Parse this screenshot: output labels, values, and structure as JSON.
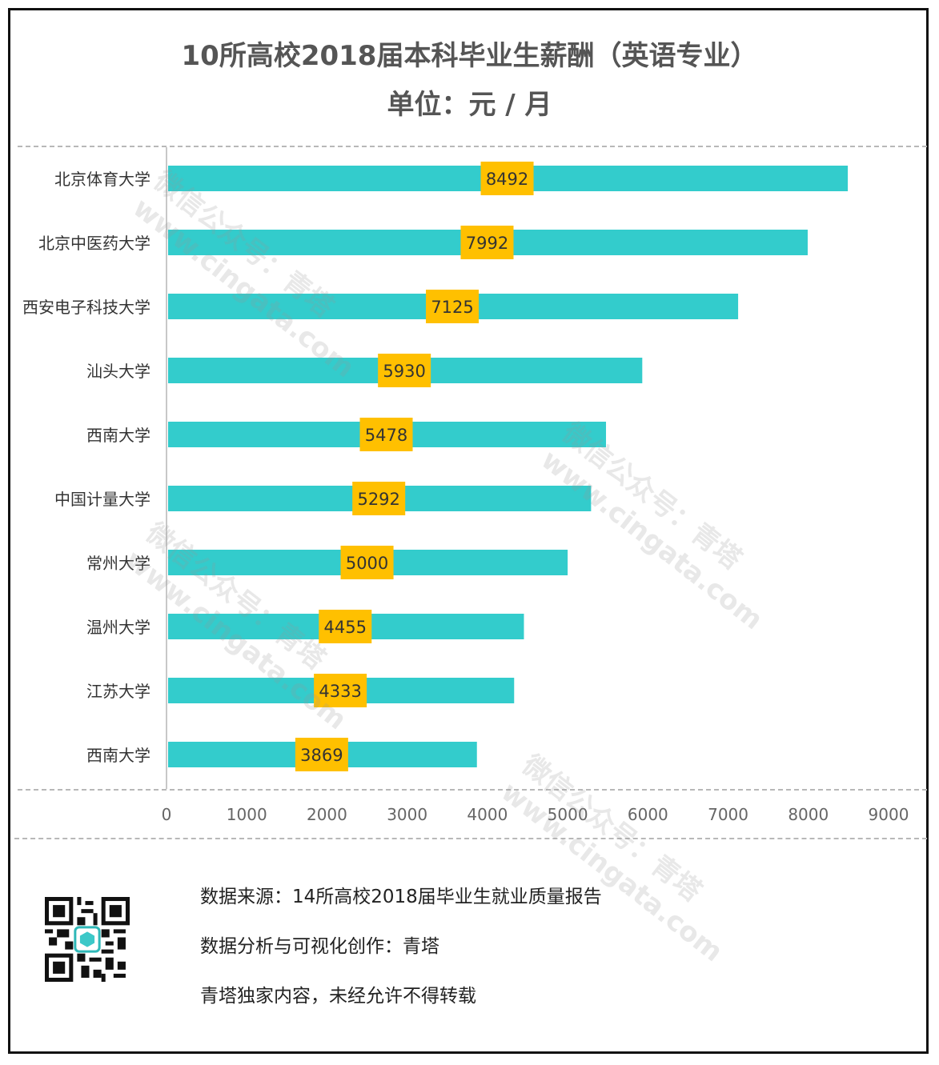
{
  "header": {
    "title": "10所高校2018届本科毕业生薪酬（英语专业）",
    "subtitle": "单位：元 / 月"
  },
  "chart_data": {
    "type": "bar",
    "orientation": "horizontal",
    "title": "10所高校2018届本科毕业生薪酬（英语专业）",
    "subtitle": "单位：元 / 月",
    "categories": [
      "北京体育大学",
      "北京中医药大学",
      "西安电子科技大学",
      "汕头大学",
      "西南大学",
      "中国计量大学",
      "常州大学",
      "温州大学",
      "江苏大学",
      "西南大学"
    ],
    "values": [
      8492,
      7992,
      7125,
      5930,
      5478,
      5292,
      5000,
      4455,
      4333,
      3869
    ],
    "xlim": [
      0,
      9000
    ],
    "xticks": [
      0,
      1000,
      2000,
      3000,
      4000,
      5000,
      6000,
      7000,
      8000,
      9000
    ],
    "bar_color": "#33CCCC",
    "label_bg_color": "#FFC000",
    "grid": false,
    "legend": "none"
  },
  "footer": {
    "source": "数据来源：14所高校2018届毕业生就业质量报告",
    "credit": "数据分析与可视化创作：青塔",
    "copyright": "青塔独家内容，未经允许不得转载"
  },
  "watermark": {
    "line1": "微信公众号：青塔",
    "line2": "www.cingata.com"
  },
  "icons": {
    "qr": "qr-code-icon"
  }
}
